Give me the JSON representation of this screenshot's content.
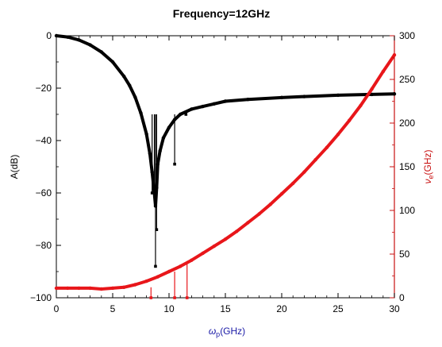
{
  "chart_data": {
    "type": "line",
    "title": "Frequency=12GHz",
    "xlabel": {
      "main": "ω",
      "sub": "p",
      "rest": "(GHz)"
    },
    "ylabel_left": "A(dB)",
    "ylabel_right": {
      "main": "ν",
      "sub": "e",
      "rest": "(GHz)"
    },
    "xlim": [
      0,
      30
    ],
    "ylim_left": [
      -100,
      0
    ],
    "ylim_right": [
      0,
      300
    ],
    "xticks": [
      0,
      5,
      10,
      15,
      20,
      25,
      30
    ],
    "yticks_left": [
      0,
      -20,
      -40,
      -60,
      -80,
      -100
    ],
    "yticks_right": [
      0,
      50,
      100,
      150,
      200,
      250,
      300
    ],
    "ytick_labels_left": [
      "0",
      "−20",
      "−40",
      "−60",
      "−80",
      "−100"
    ],
    "grid": false,
    "colors": {
      "left_series": "#000000",
      "right_series": "#e8161a",
      "xlabel": "#1a1aa6",
      "right_axis": "#c81010"
    },
    "series": [
      {
        "axis": "left",
        "x": [
          0,
          1,
          2,
          3,
          4,
          5,
          6,
          6.5,
          7,
          7.5,
          8,
          8.3,
          8.5,
          8.7,
          8.8,
          8.9,
          9.0,
          9.2,
          9.5,
          10,
          10.5,
          11,
          12,
          13,
          14,
          15,
          17,
          20,
          22,
          25,
          28,
          30
        ],
        "y": [
          0,
          -0.5,
          -1.6,
          -3.5,
          -6.2,
          -10,
          -15.5,
          -19,
          -23.5,
          -29.5,
          -37.5,
          -45,
          -52,
          -60,
          -65,
          -58,
          -49,
          -44,
          -39,
          -35,
          -32,
          -30,
          -28,
          -27,
          -26,
          -25,
          -24.3,
          -23.6,
          -23.2,
          -22.7,
          -22.4,
          -22.2
        ]
      },
      {
        "axis": "left",
        "style": "spikes",
        "x": [
          8.5,
          8.7,
          8.8,
          8.9,
          10.5,
          11.5
        ],
        "y": [
          -60,
          -59,
          -88,
          -74,
          -49,
          -30
        ]
      },
      {
        "axis": "right",
        "x": [
          0,
          1,
          2,
          3,
          4,
          5,
          6,
          7,
          8,
          9,
          10,
          11,
          12,
          13,
          14,
          15,
          16,
          17,
          18,
          19,
          20,
          21,
          22,
          23,
          24,
          25,
          26,
          27,
          28,
          29,
          30
        ],
        "y": [
          11,
          11,
          11,
          11,
          10,
          11,
          12,
          15,
          19,
          24,
          30,
          36,
          43,
          51,
          59,
          67,
          76,
          86,
          96,
          107,
          119,
          131,
          144,
          158,
          172,
          187,
          203,
          220,
          239,
          259,
          278
        ]
      },
      {
        "axis": "right",
        "style": "spikes",
        "x": [
          8.4,
          10.5,
          11.6
        ],
        "y": [
          0,
          0,
          0
        ],
        "from": [
          12,
          30,
          42
        ]
      }
    ]
  }
}
